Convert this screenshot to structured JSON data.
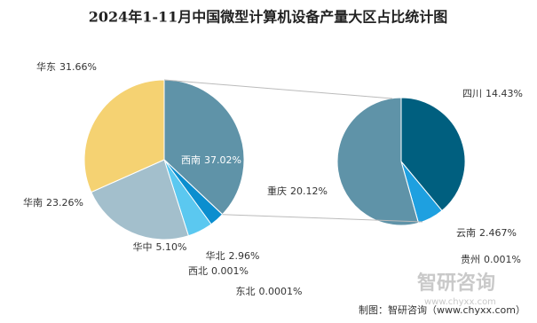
{
  "chart_data": {
    "type": "pie-of-pie",
    "title": "2024年1-11月中国微型计算机设备产量大区占比统计图",
    "categories": [
      "西南",
      "东北",
      "西北",
      "华北",
      "华中",
      "华南",
      "华东"
    ],
    "values": [
      37.02,
      0.0001,
      0.001,
      2.96,
      5.1,
      23.26,
      31.66
    ],
    "value_labels": [
      "37.02%",
      "0.0001%",
      "0.001%",
      "2.96%",
      "5.10%",
      "23.26%",
      "31.66%"
    ],
    "colors": [
      "#5f93a8",
      "#2f5f8f",
      "#3d7fb0",
      "#0b8ecf",
      "#5bc8f0",
      "#a3bfcc",
      "#f5d272"
    ],
    "secondary": {
      "categories": [
        "四川",
        "云南",
        "贵州",
        "重庆"
      ],
      "values": [
        14.43,
        2.467,
        0.001,
        20.12
      ],
      "value_labels": [
        "14.43%",
        "2.467%",
        "0.001%",
        "20.12%"
      ],
      "colors": [
        "#005f7f",
        "#1ea0e0",
        "#3d7fb0",
        "#5f93a8"
      ]
    },
    "watermark": {
      "name": "智研咨询",
      "url": "www.chyxx.com"
    },
    "source": "制图：智研咨询（www.chyxx.com）"
  }
}
